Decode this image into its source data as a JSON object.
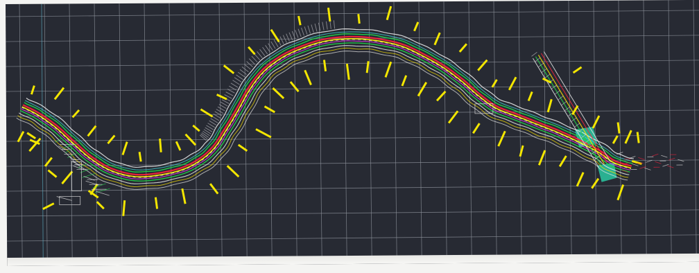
{
  "drawing": {
    "background_color": "#272a33",
    "grid_color": "#8e939c",
    "road_colors": {
      "edge": "#e8e8e8",
      "centerline": "#ffe600",
      "lane_green": "#22d34a",
      "lane_red": "#ff1f3c",
      "lane_magenta": "#e040e0",
      "shoulder_cyan": "#3fd6d6"
    },
    "marker_color": "#f3e600",
    "fill_colors": {
      "retaining_area": "#2bbf9b",
      "embankment": "#9a9aa0"
    },
    "icons": [
      "station-marker-icon",
      "retaining-block-icon",
      "embankment-hatch-icon"
    ]
  }
}
